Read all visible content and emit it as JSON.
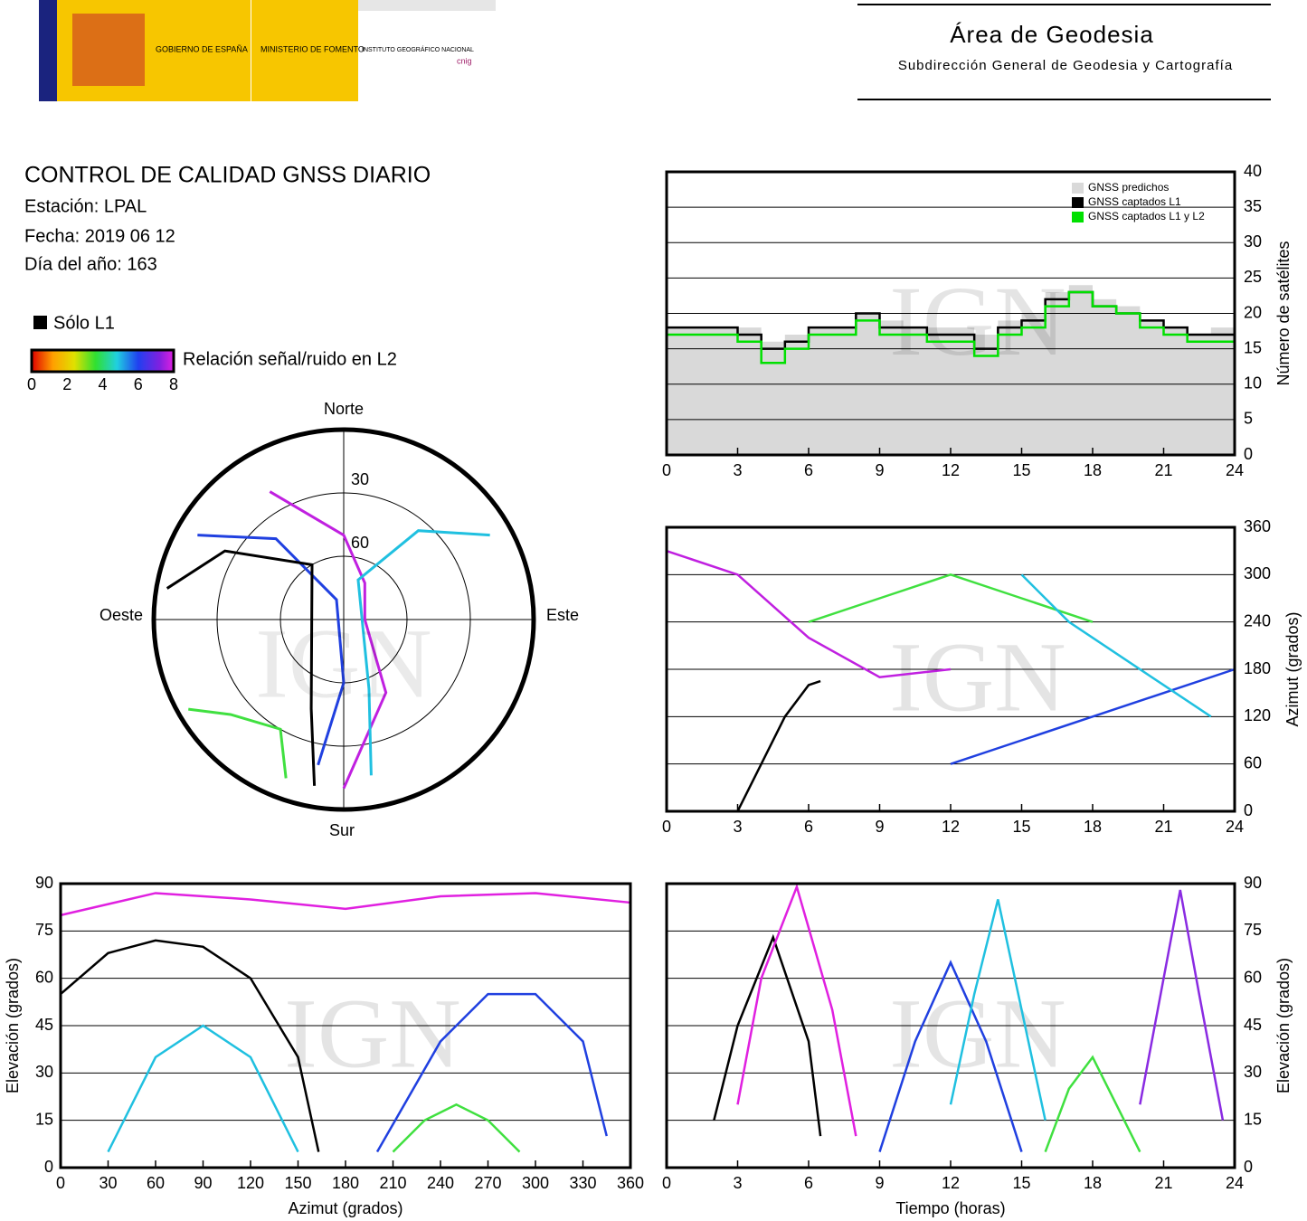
{
  "header": {
    "government": "GOBIERNO DE ESPAÑA",
    "ministry": "MINISTERIO DE FOMENTO",
    "institute": "INSTITUTO GEOGRÁFICO NACIONAL",
    "cnig": "cnig",
    "area": "Área de Geodesia",
    "subdirectorate": "Subdirección General de Geodesia y Cartografía"
  },
  "report": {
    "title": "CONTROL DE CALIDAD GNSS DIARIO",
    "station": "Estación: LPAL",
    "date": "Fecha: 2019 06 12",
    "doy": "Día del año: 163"
  },
  "legend": {
    "l1_only": "Sólo L1",
    "colorbar_label": "Relación señal/ruido en L2",
    "colorbar_lim": [
      0,
      8
    ],
    "colorbar_ticks": [
      0,
      2,
      4,
      6,
      8
    ]
  },
  "watermark": "IGN",
  "chart_data": [
    {
      "type": "step",
      "y_label": "Número de satélites",
      "xlim": [
        0,
        24
      ],
      "xticks": [
        0,
        3,
        6,
        9,
        12,
        15,
        18,
        21,
        24
      ],
      "ylim": [
        0,
        40
      ],
      "yticks": [
        0,
        5,
        10,
        15,
        20,
        25,
        30,
        35,
        40
      ],
      "grid": true,
      "x": [
        0,
        1,
        2,
        3,
        4,
        5,
        6,
        7,
        8,
        9,
        10,
        11,
        12,
        13,
        14,
        15,
        16,
        17,
        18,
        19,
        20,
        21,
        22,
        23,
        24
      ],
      "series": [
        {
          "name": "GNSS predichos",
          "color": "#d9d9d9",
          "fill": true,
          "values": [
            18,
            18,
            18,
            18,
            16,
            17,
            18,
            18,
            20,
            19,
            18,
            18,
            18,
            17,
            19,
            20,
            23,
            24,
            22,
            21,
            19,
            18,
            17,
            18,
            17
          ]
        },
        {
          "name": "GNSS captados L1",
          "color": "#000000",
          "fill": false,
          "values": [
            18,
            18,
            18,
            17,
            15,
            16,
            18,
            18,
            20,
            18,
            18,
            17,
            17,
            15,
            18,
            19,
            22,
            23,
            21,
            20,
            19,
            18,
            17,
            17,
            17
          ]
        },
        {
          "name": "GNSS captados L1 y L2",
          "color": "#00e000",
          "fill": false,
          "values": [
            17,
            17,
            17,
            16,
            13,
            15,
            17,
            17,
            19,
            17,
            17,
            16,
            16,
            14,
            17,
            18,
            21,
            23,
            21,
            20,
            18,
            17,
            16,
            16,
            16
          ]
        }
      ]
    },
    {
      "type": "track",
      "y_label": "Azimut (grados)",
      "xlim": [
        0,
        24
      ],
      "xticks": [
        0,
        3,
        6,
        9,
        12,
        15,
        18,
        21,
        24
      ],
      "ylim": [
        0,
        360
      ],
      "yticks": [
        0,
        60,
        120,
        180,
        240,
        300,
        360
      ],
      "grid": true,
      "series": [
        {
          "color": "#000000",
          "x": [
            3,
            4,
            5,
            6,
            6.5
          ],
          "values": [
            0,
            60,
            120,
            160,
            165
          ]
        },
        {
          "color": "#c020e0",
          "x": [
            0,
            3,
            6,
            9,
            12
          ],
          "values": [
            330,
            300,
            220,
            170,
            180
          ]
        },
        {
          "color": "#2040e0",
          "x": [
            12,
            15,
            18,
            21,
            24
          ],
          "values": [
            60,
            90,
            120,
            150,
            180
          ]
        },
        {
          "color": "#40e040",
          "x": [
            6,
            9,
            12,
            15,
            18
          ],
          "values": [
            240,
            270,
            300,
            270,
            240
          ]
        },
        {
          "color": "#20c0e0",
          "x": [
            15,
            17,
            19,
            21,
            23
          ],
          "values": [
            300,
            240,
            200,
            160,
            120
          ]
        }
      ]
    },
    {
      "type": "track",
      "x_label": "Azimut (grados)",
      "y_label": "Elevación (grados)",
      "xlim": [
        0,
        360
      ],
      "xticks": [
        0,
        30,
        60,
        90,
        120,
        150,
        180,
        210,
        240,
        270,
        300,
        330,
        360
      ],
      "ylim": [
        0,
        90
      ],
      "yticks": [
        0,
        15,
        30,
        45,
        60,
        75,
        90
      ],
      "grid": true,
      "series": [
        {
          "color": "#000000",
          "x": [
            0,
            30,
            60,
            90,
            120,
            150,
            163
          ],
          "values": [
            55,
            68,
            72,
            70,
            60,
            35,
            5
          ]
        },
        {
          "color": "#e020e0",
          "x": [
            0,
            60,
            120,
            180,
            240,
            300,
            360
          ],
          "values": [
            80,
            87,
            85,
            82,
            86,
            87,
            84
          ]
        },
        {
          "color": "#2040e0",
          "x": [
            200,
            240,
            270,
            300,
            330,
            345
          ],
          "values": [
            5,
            40,
            55,
            55,
            40,
            10
          ]
        },
        {
          "color": "#20c0e0",
          "x": [
            30,
            60,
            90,
            120,
            150
          ],
          "values": [
            5,
            35,
            45,
            35,
            5
          ]
        },
        {
          "color": "#40e040",
          "x": [
            210,
            230,
            250,
            270,
            290
          ],
          "values": [
            5,
            15,
            20,
            15,
            5
          ]
        }
      ]
    },
    {
      "type": "track",
      "x_label": "Tiempo (horas)",
      "y_label": "Elevación (grados)",
      "xlim": [
        0,
        24
      ],
      "xticks": [
        0,
        3,
        6,
        9,
        12,
        15,
        18,
        21,
        24
      ],
      "ylim": [
        0,
        90
      ],
      "yticks": [
        0,
        15,
        30,
        45,
        60,
        75,
        90
      ],
      "grid": true,
      "series": [
        {
          "color": "#000000",
          "x": [
            2,
            3,
            4.5,
            6,
            6.5
          ],
          "values": [
            15,
            45,
            73,
            40,
            10
          ]
        },
        {
          "color": "#e020e0",
          "x": [
            3,
            4,
            5.5,
            7,
            8
          ],
          "values": [
            20,
            60,
            89,
            50,
            10
          ]
        },
        {
          "color": "#2040e0",
          "x": [
            9,
            10.5,
            12,
            13.5,
            15
          ],
          "values": [
            5,
            40,
            65,
            40,
            5
          ]
        },
        {
          "color": "#20c0e0",
          "x": [
            12,
            13,
            14,
            15,
            16
          ],
          "values": [
            20,
            55,
            85,
            50,
            15
          ]
        },
        {
          "color": "#40e040",
          "x": [
            16,
            17,
            18,
            19,
            20
          ],
          "values": [
            5,
            25,
            35,
            20,
            5
          ]
        },
        {
          "color": "#8a2be2",
          "x": [
            20,
            21,
            21.7,
            22.5,
            23.5
          ],
          "values": [
            20,
            60,
            88,
            55,
            15
          ]
        }
      ]
    },
    {
      "type": "polar",
      "north": "Norte",
      "south": "Sur",
      "east": "Este",
      "west": "Oeste",
      "rlim": [
        90,
        0
      ],
      "rticks": [
        30,
        60
      ],
      "series": [
        {
          "color": "#c020e0",
          "azimuth": [
            330,
            0,
            30,
            90,
            150,
            180
          ],
          "elevation": [
            20,
            50,
            70,
            80,
            50,
            10
          ]
        },
        {
          "color": "#2040e0",
          "azimuth": [
            300,
            320,
            340,
            180,
            190
          ],
          "elevation": [
            10,
            40,
            80,
            60,
            20
          ]
        },
        {
          "color": "#000000",
          "azimuth": [
            280,
            300,
            330,
            200,
            190
          ],
          "elevation": [
            5,
            25,
            60,
            45,
            10
          ]
        },
        {
          "color": "#20c0e0",
          "azimuth": [
            60,
            40,
            20,
            160,
            170
          ],
          "elevation": [
            10,
            35,
            70,
            55,
            15
          ]
        },
        {
          "color": "#40e040",
          "azimuth": [
            240,
            230,
            210,
            200
          ],
          "elevation": [
            5,
            20,
            30,
            10
          ]
        }
      ]
    }
  ]
}
